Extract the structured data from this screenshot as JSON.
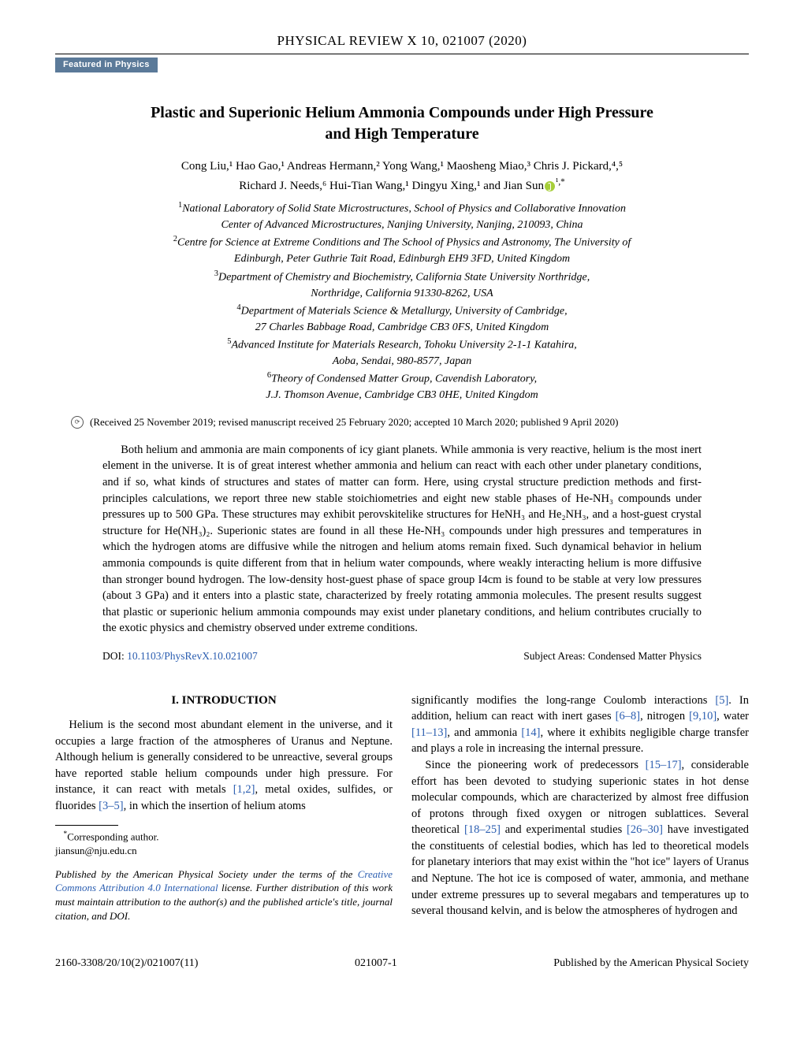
{
  "journal": {
    "header": "PHYSICAL REVIEW X 10, 021007 (2020)",
    "featured_badge": "Featured in Physics"
  },
  "article": {
    "title_line1": "Plastic and Superionic Helium Ammonia Compounds under High Pressure",
    "title_line2": "and High Temperature",
    "authors_line1": "Cong Liu,¹ Hao Gao,¹ Andreas Hermann,² Yong Wang,¹ Maosheng Miao,³ Chris J. Pickard,⁴,⁵",
    "authors_line2_prefix": "Richard J. Needs,⁶ Hui-Tian Wang,¹ Dingyu Xing,¹ and Jian Sun",
    "authors_line2_suffix": "¹,*",
    "affiliations": [
      {
        "num": "1",
        "text": "National Laboratory of Solid State Microstructures, School of Physics and Collaborative Innovation"
      },
      {
        "num": "",
        "text": "Center of Advanced Microstructures, Nanjing University, Nanjing, 210093, China"
      },
      {
        "num": "2",
        "text": "Centre for Science at Extreme Conditions and The School of Physics and Astronomy, The University of"
      },
      {
        "num": "",
        "text": "Edinburgh, Peter Guthrie Tait Road, Edinburgh EH9 3FD, United Kingdom"
      },
      {
        "num": "3",
        "text": "Department of Chemistry and Biochemistry, California State University Northridge,"
      },
      {
        "num": "",
        "text": "Northridge, California 91330-8262, USA"
      },
      {
        "num": "4",
        "text": "Department of Materials Science & Metallurgy, University of Cambridge,"
      },
      {
        "num": "",
        "text": "27 Charles Babbage Road, Cambridge CB3 0FS, United Kingdom"
      },
      {
        "num": "5",
        "text": "Advanced Institute for Materials Research, Tohoku University 2-1-1 Katahira,"
      },
      {
        "num": "",
        "text": "Aoba, Sendai, 980-8577, Japan"
      },
      {
        "num": "6",
        "text": "Theory of Condensed Matter Group, Cavendish Laboratory,"
      },
      {
        "num": "",
        "text": "J.J. Thomson Avenue, Cambridge CB3 0HE, United Kingdom"
      }
    ],
    "received": "(Received 25 November 2019; revised manuscript received 25 February 2020; accepted 10 March 2020; published 9 April 2020)",
    "abstract": "Both helium and ammonia are main components of icy giant planets. While ammonia is very reactive, helium is the most inert element in the universe. It is of great interest whether ammonia and helium can react with each other under planetary conditions, and if so, what kinds of structures and states of matter can form. Here, using crystal structure prediction methods and first-principles calculations, we report three new stable stoichiometries and eight new stable phases of He-NH₃ compounds under pressures up to 500 GPa. These structures may exhibit perovskitelike structures for HeNH₃ and He₂NH₃, and a host-guest crystal structure for He(NH₃)₂. Superionic states are found in all these He-NH₃ compounds under high pressures and temperatures in which the hydrogen atoms are diffusive while the nitrogen and helium atoms remain fixed. Such dynamical behavior in helium ammonia compounds is quite different from that in helium water compounds, where weakly interacting helium is more diffusive than stronger bound hydrogen. The low-density host-guest phase of space group I4cm is found to be stable at very low pressures (about 3 GPa) and it enters into a plastic state, characterized by freely rotating ammonia molecules. The present results suggest that plastic or superionic helium ammonia compounds may exist under planetary conditions, and helium contributes crucially to the exotic physics and chemistry observed under extreme conditions.",
    "doi_label": "DOI: ",
    "doi_link": "10.1103/PhysRevX.10.021007",
    "subject_areas": "Subject Areas: Condensed Matter Physics"
  },
  "body": {
    "section1_heading": "I. INTRODUCTION",
    "col1_p1_a": "Helium is the second most abundant element in the universe, and it occupies a large fraction of the atmospheres of Uranus and Neptune. Although helium is generally considered to be unreactive, several groups have reported stable helium compounds under high pressure. For instance, it can react with metals ",
    "ref_1_2": "[1,2]",
    "col1_p1_b": ", metal oxides, sulfides, or fluorides ",
    "ref_3_5": "[3–5]",
    "col1_p1_c": ", in which the insertion of helium atoms",
    "col2_p1_a": "significantly modifies the long-range Coulomb interactions ",
    "ref_5": "[5]",
    "col2_p1_b": ". In addition, helium can react with inert gases ",
    "ref_6_8": "[6–8]",
    "col2_p1_c": ", nitrogen ",
    "ref_9_10": "[9,10]",
    "col2_p1_d": ", water ",
    "ref_11_13": "[11–13]",
    "col2_p1_e": ", and ammonia ",
    "ref_14": "[14]",
    "col2_p1_f": ", where it exhibits negligible charge transfer and plays a role in increasing the internal pressure.",
    "col2_p2_a": "Since the pioneering work of predecessors ",
    "ref_15_17": "[15–17]",
    "col2_p2_b": ", considerable effort has been devoted to studying superionic states in hot dense molecular compounds, which are characterized by almost free diffusion of protons through fixed oxygen or nitrogen sublattices. Several theoretical ",
    "ref_18_25": "[18–25]",
    "col2_p2_c": " and experimental studies ",
    "ref_26_30": "[26–30]",
    "col2_p2_d": " have investigated the constituents of celestial bodies, which has led to theoretical models for planetary interiors that may exist within the \"hot ice\" layers of Uranus and Neptune. The hot ice is composed of water, ammonia, and methane under extreme pressures up to several megabars and temperatures up to several thousand kelvin, and is below the atmospheres of hydrogen and"
  },
  "footnotes": {
    "corresponding": "Corresponding author.",
    "email": "jiansun@nju.edu.cn",
    "license_a": "Published by the American Physical Society under the terms of the ",
    "license_link": "Creative Commons Attribution 4.0 International",
    "license_b": " license. Further distribution of this work must maintain attribution to the author(s) and the published article's title, journal citation, and DOI."
  },
  "footer": {
    "left": "2160-3308/20/10(2)/021007(11)",
    "center": "021007-1",
    "right": "Published by the American Physical Society"
  },
  "colors": {
    "badge_bg": "#5b7a99",
    "link": "#2a5db0",
    "orcid": "#a6ce39"
  }
}
